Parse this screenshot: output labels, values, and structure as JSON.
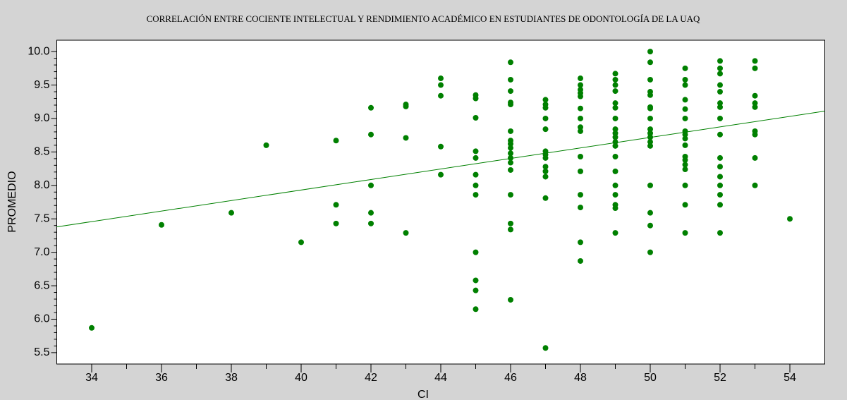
{
  "chart_data": {
    "type": "scatter",
    "title": "CORRELACIÓN ENTRE COCIENTE INTELECTUAL Y RENDIMIENTO ACADÉMICO EN ESTUDIANTES DE ODONTOLOGÍA DE LA UAQ",
    "x_label": "CI",
    "y_label": "PROMEDIO",
    "color": "#008000",
    "xlim": [
      33,
      55
    ],
    "ylim": [
      5.33,
      10.17
    ],
    "xticks": [
      34,
      36,
      38,
      40,
      42,
      44,
      46,
      48,
      50,
      52,
      54
    ],
    "yticks": [
      5.5,
      {
        "value": 6,
        "label": "6.0"
      },
      6.5,
      {
        "value": 7,
        "label": "7.0"
      },
      7.5,
      {
        "value": 8,
        "label": "8.0"
      },
      8.5,
      {
        "value": 9,
        "label": "9.0"
      },
      9.5,
      {
        "value": 10,
        "label": "10.0"
      }
    ],
    "trend": {
      "x": [
        33,
        55
      ],
      "values": [
        7.38,
        9.11
      ]
    },
    "x": [
      34,
      36,
      38,
      39,
      40,
      41,
      41,
      41,
      42,
      42,
      42,
      42,
      42,
      43,
      43,
      43,
      43,
      44,
      44,
      44,
      44,
      44,
      45,
      45,
      45,
      45,
      45,
      45,
      45,
      45,
      45,
      45,
      45,
      45,
      46,
      46,
      46,
      46,
      46,
      46,
      46,
      46,
      46,
      46,
      46,
      46,
      46,
      46,
      46,
      46,
      46,
      47,
      47,
      47,
      47,
      47,
      47,
      47,
      47,
      47,
      47,
      47,
      47,
      47,
      48,
      48,
      48,
      48,
      48,
      48,
      48,
      48,
      48,
      48,
      48,
      48,
      48,
      48,
      48,
      49,
      49,
      49,
      49,
      49,
      49,
      49,
      49,
      49,
      49,
      49,
      49,
      49,
      49,
      49,
      49,
      49,
      49,
      49,
      50,
      50,
      50,
      50,
      50,
      50,
      50,
      50,
      50,
      50,
      50,
      50,
      50,
      50,
      50,
      50,
      50,
      51,
      51,
      51,
      51,
      51,
      51,
      51,
      51,
      51,
      51,
      51,
      51,
      51,
      51,
      51,
      51,
      51,
      52,
      52,
      52,
      52,
      52,
      52,
      52,
      52,
      52,
      52,
      52,
      52,
      52,
      52,
      52,
      52,
      53,
      53,
      53,
      53,
      53,
      53,
      53,
      53,
      53,
      54
    ],
    "values": [
      5.87,
      7.41,
      7.59,
      8.6,
      7.15,
      8.67,
      7.71,
      7.43,
      9.16,
      8.76,
      8.0,
      7.59,
      7.43,
      9.21,
      9.18,
      8.71,
      7.29,
      9.6,
      9.5,
      9.34,
      8.58,
      8.16,
      9.35,
      9.3,
      9.01,
      8.51,
      8.41,
      8.16,
      8.0,
      7.86,
      7.0,
      6.58,
      6.43,
      6.15,
      9.84,
      9.58,
      9.41,
      9.24,
      9.21,
      8.81,
      8.67,
      8.62,
      8.56,
      8.48,
      8.41,
      8.34,
      8.23,
      7.86,
      7.43,
      7.34,
      6.29,
      9.28,
      9.21,
      9.16,
      9.0,
      8.84,
      8.51,
      8.46,
      8.41,
      8.28,
      8.21,
      8.13,
      7.81,
      5.57,
      9.6,
      9.5,
      9.43,
      9.38,
      9.33,
      9.15,
      9.0,
      8.87,
      8.81,
      8.43,
      8.21,
      7.86,
      7.67,
      7.15,
      6.87,
      9.67,
      9.58,
      9.5,
      9.41,
      9.23,
      9.16,
      9.0,
      8.84,
      8.78,
      8.72,
      8.65,
      8.59,
      8.43,
      8.21,
      8.0,
      7.86,
      7.71,
      7.66,
      7.29,
      10.0,
      9.84,
      9.58,
      9.4,
      9.35,
      9.17,
      9.15,
      9.0,
      8.84,
      8.78,
      8.72,
      8.65,
      8.59,
      8.0,
      7.59,
      7.4,
      7.0,
      9.75,
      9.58,
      9.5,
      9.28,
      9.14,
      9.0,
      8.81,
      8.76,
      8.7,
      8.6,
      8.43,
      8.38,
      8.31,
      8.24,
      8.0,
      7.71,
      7.29,
      9.86,
      9.75,
      9.67,
      9.5,
      9.4,
      9.23,
      9.17,
      9.0,
      8.76,
      8.41,
      8.28,
      8.13,
      8.0,
      7.86,
      7.71,
      7.29,
      9.86,
      9.75,
      9.34,
      9.23,
      9.17,
      8.81,
      8.76,
      8.41,
      8.0,
      7.5
    ]
  }
}
